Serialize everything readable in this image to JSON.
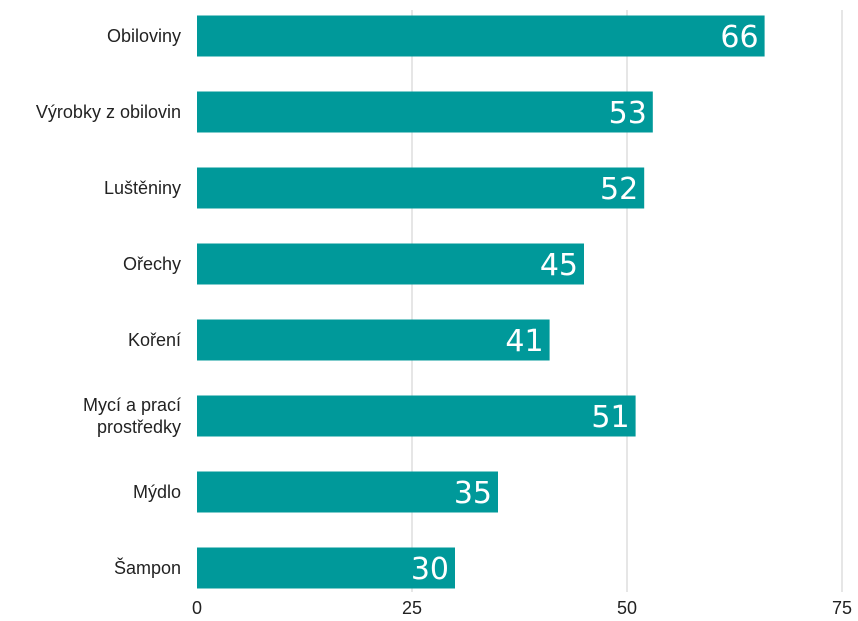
{
  "chart_data": {
    "type": "bar",
    "orientation": "horizontal",
    "categories": [
      [
        "Obiloviny"
      ],
      [
        "Výrobky z obilovin"
      ],
      [
        "Luštěniny"
      ],
      [
        "Ořechy"
      ],
      [
        "Koření"
      ],
      [
        "Mycí a prací",
        "prostředky"
      ],
      [
        "Mýdlo"
      ],
      [
        "Šampon"
      ]
    ],
    "values": [
      66,
      53,
      52,
      45,
      41,
      51,
      35,
      30
    ],
    "xlim": [
      0,
      75
    ],
    "xticks": [
      0,
      25,
      50,
      75
    ],
    "grid": true,
    "bar_color": "#00999a",
    "label_color": "#ffffff"
  }
}
